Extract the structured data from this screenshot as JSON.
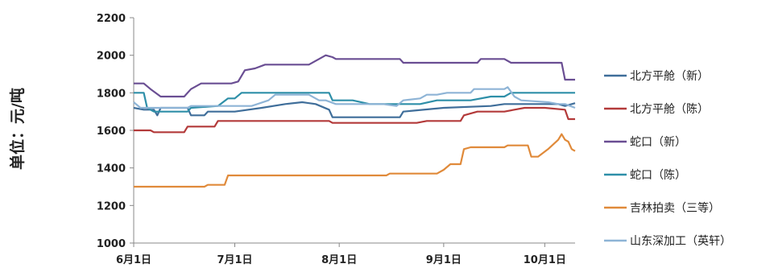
{
  "chart_data": {
    "type": "line",
    "title": "",
    "xlabel": "",
    "ylabel": "单位：元/吨",
    "ylim": [
      1000,
      2200
    ],
    "yticks": [
      1000,
      1200,
      1400,
      1600,
      1800,
      2000,
      2200
    ],
    "xlim": [
      0,
      131
    ],
    "xticks": [
      {
        "label": "6月1日",
        "value": 0
      },
      {
        "label": "7月1日",
        "value": 30
      },
      {
        "label": "8月1日",
        "value": 61
      },
      {
        "label": "9月1日",
        "value": 92
      },
      {
        "label": "10月1日",
        "value": 122
      }
    ],
    "grid": false,
    "legend": "right",
    "series": [
      {
        "name": "北方平舱（新）",
        "color": "#3F6E9A",
        "points": [
          [
            0,
            1720
          ],
          [
            3,
            1710
          ],
          [
            6,
            1710
          ],
          [
            7,
            1680
          ],
          [
            8,
            1720
          ],
          [
            16,
            1720
          ],
          [
            17,
            1680
          ],
          [
            21,
            1680
          ],
          [
            22,
            1700
          ],
          [
            30,
            1700
          ],
          [
            38,
            1720
          ],
          [
            45,
            1740
          ],
          [
            50,
            1750
          ],
          [
            54,
            1740
          ],
          [
            58,
            1710
          ],
          [
            59,
            1670
          ],
          [
            70,
            1670
          ],
          [
            79,
            1670
          ],
          [
            80,
            1700
          ],
          [
            92,
            1720
          ],
          [
            106,
            1730
          ],
          [
            110,
            1740
          ],
          [
            126,
            1740
          ],
          [
            128,
            1730
          ],
          [
            131,
            1745
          ]
        ]
      },
      {
        "name": "北方平舱（陈）",
        "color": "#B33A3A",
        "points": [
          [
            0,
            1600
          ],
          [
            5,
            1600
          ],
          [
            6,
            1590
          ],
          [
            15,
            1590
          ],
          [
            16,
            1620
          ],
          [
            24,
            1620
          ],
          [
            25,
            1650
          ],
          [
            58,
            1650
          ],
          [
            59,
            1640
          ],
          [
            69,
            1640
          ],
          [
            83,
            1640
          ],
          [
            84,
            1640
          ],
          [
            87,
            1650
          ],
          [
            97,
            1650
          ],
          [
            98,
            1680
          ],
          [
            102,
            1700
          ],
          [
            110,
            1700
          ],
          [
            113,
            1710
          ],
          [
            116,
            1720
          ],
          [
            122,
            1720
          ],
          [
            128,
            1710
          ],
          [
            129,
            1660
          ],
          [
            131,
            1660
          ]
        ]
      },
      {
        "name": "蛇口（新）",
        "color": "#6A4E93",
        "points": [
          [
            0,
            1850
          ],
          [
            3,
            1850
          ],
          [
            5,
            1820
          ],
          [
            8,
            1780
          ],
          [
            15,
            1780
          ],
          [
            17,
            1820
          ],
          [
            20,
            1850
          ],
          [
            29,
            1850
          ],
          [
            31,
            1860
          ],
          [
            33,
            1920
          ],
          [
            36,
            1930
          ],
          [
            39,
            1950
          ],
          [
            52,
            1950
          ],
          [
            55,
            1980
          ],
          [
            57,
            2000
          ],
          [
            59,
            1990
          ],
          [
            60,
            1980
          ],
          [
            74,
            1980
          ],
          [
            79,
            1980
          ],
          [
            80,
            1960
          ],
          [
            102,
            1960
          ],
          [
            103,
            1980
          ],
          [
            110,
            1980
          ],
          [
            112,
            1960
          ],
          [
            127,
            1960
          ],
          [
            128,
            1870
          ],
          [
            131,
            1870
          ]
        ]
      },
      {
        "name": "蛇口（陈）",
        "color": "#2E8FA8",
        "points": [
          [
            0,
            1800
          ],
          [
            3,
            1800
          ],
          [
            4,
            1720
          ],
          [
            6,
            1700
          ],
          [
            16,
            1700
          ],
          [
            17,
            1720
          ],
          [
            25,
            1730
          ],
          [
            28,
            1770
          ],
          [
            30,
            1770
          ],
          [
            32,
            1800
          ],
          [
            58,
            1800
          ],
          [
            59,
            1760
          ],
          [
            65,
            1760
          ],
          [
            70,
            1740
          ],
          [
            85,
            1740
          ],
          [
            90,
            1760
          ],
          [
            100,
            1760
          ],
          [
            106,
            1780
          ],
          [
            110,
            1780
          ],
          [
            112,
            1800
          ],
          [
            131,
            1800
          ]
        ]
      },
      {
        "name": "吉林拍卖（三等）",
        "color": "#E08A3A",
        "points": [
          [
            0,
            1300
          ],
          [
            21,
            1300
          ],
          [
            22,
            1310
          ],
          [
            27,
            1310
          ],
          [
            28,
            1360
          ],
          [
            55,
            1360
          ],
          [
            75,
            1360
          ],
          [
            76,
            1370
          ],
          [
            90,
            1370
          ],
          [
            92,
            1390
          ],
          [
            94,
            1420
          ],
          [
            97,
            1420
          ],
          [
            98,
            1500
          ],
          [
            100,
            1510
          ],
          [
            110,
            1510
          ],
          [
            111,
            1520
          ],
          [
            117,
            1520
          ],
          [
            118,
            1460
          ],
          [
            120,
            1460
          ],
          [
            123,
            1500
          ],
          [
            126,
            1550
          ],
          [
            127,
            1580
          ],
          [
            128,
            1550
          ],
          [
            129,
            1540
          ],
          [
            130,
            1500
          ],
          [
            131,
            1490
          ]
        ]
      },
      {
        "name": "山东深加工（英轩）",
        "color": "#8EB4D6",
        "points": [
          [
            0,
            1750
          ],
          [
            2,
            1720
          ],
          [
            16,
            1720
          ],
          [
            17,
            1730
          ],
          [
            35,
            1730
          ],
          [
            40,
            1760
          ],
          [
            42,
            1790
          ],
          [
            52,
            1790
          ],
          [
            55,
            1760
          ],
          [
            57,
            1760
          ],
          [
            60,
            1740
          ],
          [
            74,
            1740
          ],
          [
            78,
            1730
          ],
          [
            80,
            1760
          ],
          [
            85,
            1770
          ],
          [
            87,
            1790
          ],
          [
            90,
            1790
          ],
          [
            93,
            1800
          ],
          [
            100,
            1800
          ],
          [
            101,
            1820
          ],
          [
            110,
            1820
          ],
          [
            111,
            1830
          ],
          [
            113,
            1780
          ],
          [
            115,
            1760
          ],
          [
            123,
            1750
          ],
          [
            126,
            1740
          ],
          [
            128,
            1740
          ],
          [
            131,
            1720
          ]
        ]
      }
    ]
  }
}
